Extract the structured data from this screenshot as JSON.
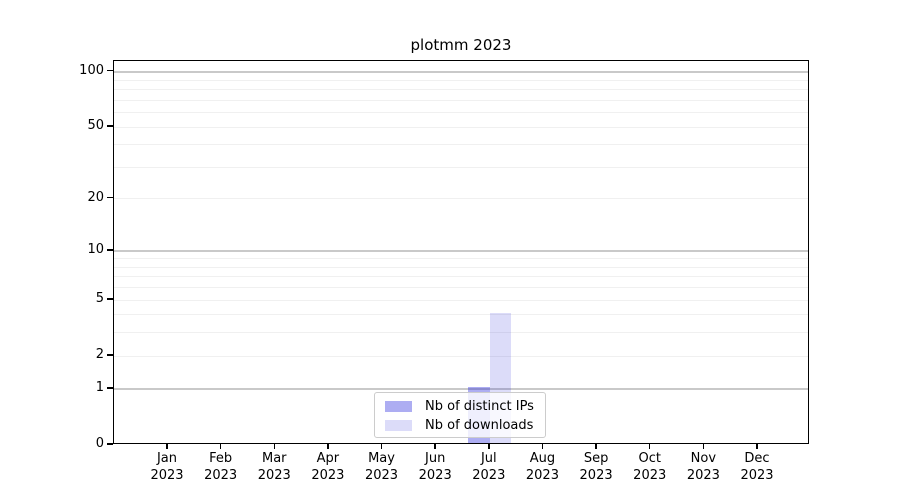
{
  "chart_data": {
    "type": "bar",
    "title": "plotmm 2023",
    "categories": [
      "Jan 2023",
      "Feb 2023",
      "Mar 2023",
      "Apr 2023",
      "May 2023",
      "Jun 2023",
      "Jul 2023",
      "Aug 2023",
      "Sep 2023",
      "Oct 2023",
      "Nov 2023",
      "Dec 2023"
    ],
    "series": [
      {
        "name": "Nb of distinct IPs",
        "color": "#a9a9f1",
        "fill": "rgba(40,40,220,0.38)",
        "values": [
          0,
          0,
          0,
          0,
          0,
          0,
          1,
          0,
          0,
          0,
          0,
          0
        ]
      },
      {
        "name": "Nb of downloads",
        "color": "#dcdcf8",
        "fill": "rgba(40,40,220,0.16)",
        "values": [
          0,
          0,
          0,
          0,
          0,
          0,
          4,
          0,
          0,
          0,
          0,
          0
        ]
      }
    ],
    "xlabel": "",
    "ylabel": "",
    "yscale": "log1p",
    "ylim": [
      0,
      114
    ],
    "yticks": [
      0,
      1,
      2,
      5,
      10,
      20,
      50,
      100
    ],
    "grid": "horizontal",
    "legend_position": "lower center inside"
  },
  "axes": {
    "y_tick_labels": [
      "0",
      "1",
      "2",
      "5",
      "10",
      "20",
      "50",
      "100"
    ],
    "y_major_gridlines": [
      1,
      10,
      100
    ],
    "y_minor_gridlines": [
      2,
      3,
      4,
      5,
      6,
      7,
      8,
      9,
      20,
      30,
      40,
      50,
      60,
      70,
      80,
      90
    ],
    "x_ticks": [
      {
        "month": "Jan",
        "year": "2023"
      },
      {
        "month": "Feb",
        "year": "2023"
      },
      {
        "month": "Mar",
        "year": "2023"
      },
      {
        "month": "Apr",
        "year": "2023"
      },
      {
        "month": "May",
        "year": "2023"
      },
      {
        "month": "Jun",
        "year": "2023"
      },
      {
        "month": "Jul",
        "year": "2023"
      },
      {
        "month": "Aug",
        "year": "2023"
      },
      {
        "month": "Sep",
        "year": "2023"
      },
      {
        "month": "Oct",
        "year": "2023"
      },
      {
        "month": "Nov",
        "year": "2023"
      },
      {
        "month": "Dec",
        "year": "2023"
      }
    ]
  },
  "colors": {
    "grid_minor": "#f0f0f0",
    "grid_major": "#c9c9c9",
    "spine": "#000000",
    "text": "#000000",
    "legend_border": "#cccccc",
    "legend_background": "rgba(255,255,255,0.8)"
  }
}
